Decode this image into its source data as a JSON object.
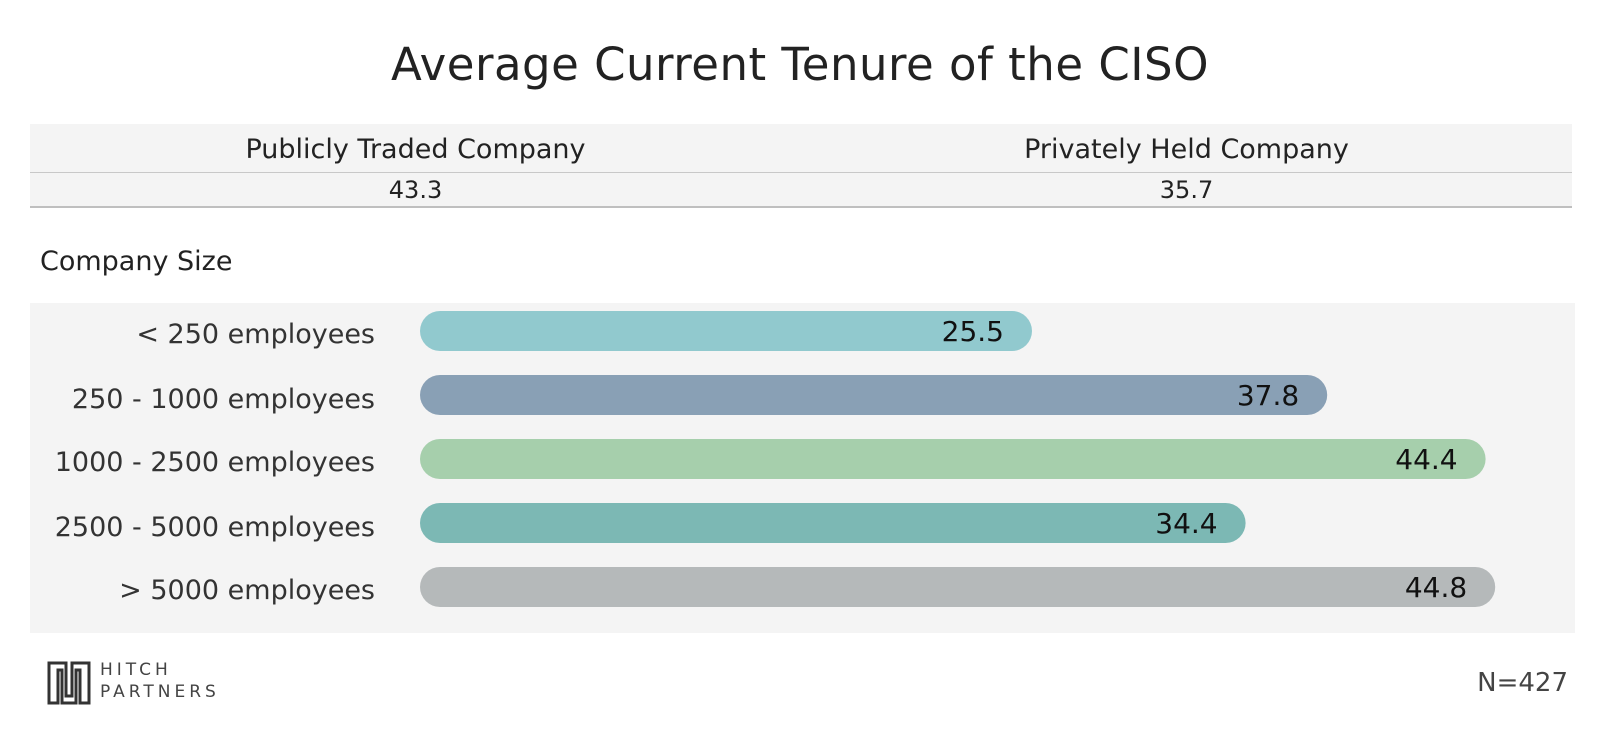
{
  "chart_data": {
    "type": "bar",
    "title": "Average Current Tenure of the CISO",
    "summary": [
      {
        "header": "Publicly Traded Company",
        "value": "43.3"
      },
      {
        "header": "Privately Held Company",
        "value": "35.7"
      }
    ],
    "section_label": "Company Size",
    "categories": [
      "< 250 employees",
      "250 - 1000 employees",
      "1000 - 2500 employees",
      "2500 - 5000 employees",
      "> 5000 employees"
    ],
    "values": [
      25.5,
      37.8,
      44.4,
      34.4,
      44.8
    ],
    "value_labels": [
      "25.5",
      "37.8",
      "44.4",
      "34.4",
      "44.8"
    ],
    "colors": [
      "#91c9ce",
      "#89a0b5",
      "#a6cfac",
      "#7cb8b4",
      "#b5b9ba"
    ],
    "xlim": [
      0,
      45
    ],
    "orientation": "horizontal",
    "grid": false,
    "legend": "none"
  },
  "footer": {
    "sample_size": "N=427",
    "logo_line1": "HITCH",
    "logo_line2": "PARTNERS"
  }
}
